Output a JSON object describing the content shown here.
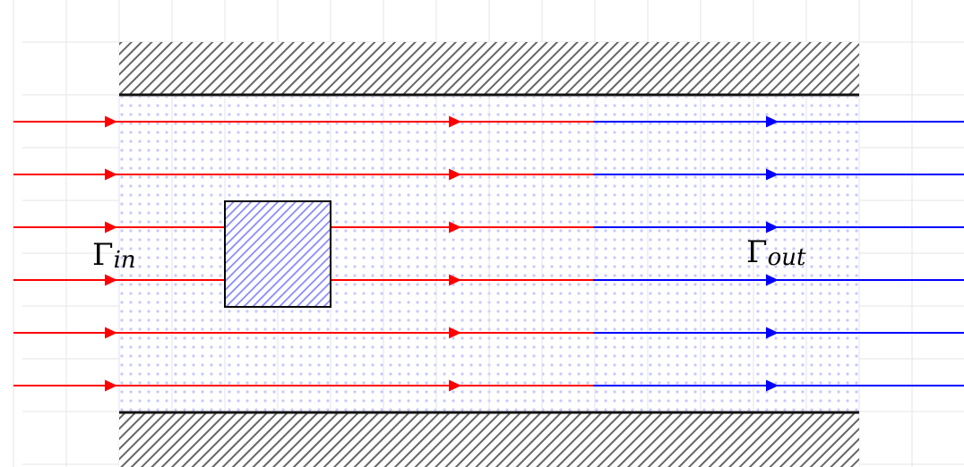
{
  "labels": {
    "inlet": {
      "symbol": "Γ",
      "subscript": "in"
    },
    "outlet": {
      "symbol": "Γ",
      "subscript": "out"
    }
  },
  "colors": {
    "grid": "#e6e6e6",
    "wall_hatch": "#666666",
    "wall_line": "#111111",
    "fluid_dots": "#c8c8ff",
    "obstacle_fill": "#8888ff",
    "obstacle_border": "#000000",
    "inflow": "#ff0000",
    "outflow": "#0000ff"
  },
  "diagram": {
    "wall_top": "solid-wall-hatched",
    "wall_bottom": "solid-wall-hatched",
    "domain": "fluid-domain-dotted",
    "obstacle": "square-obstacle-hatched",
    "streamline_count": 6
  }
}
